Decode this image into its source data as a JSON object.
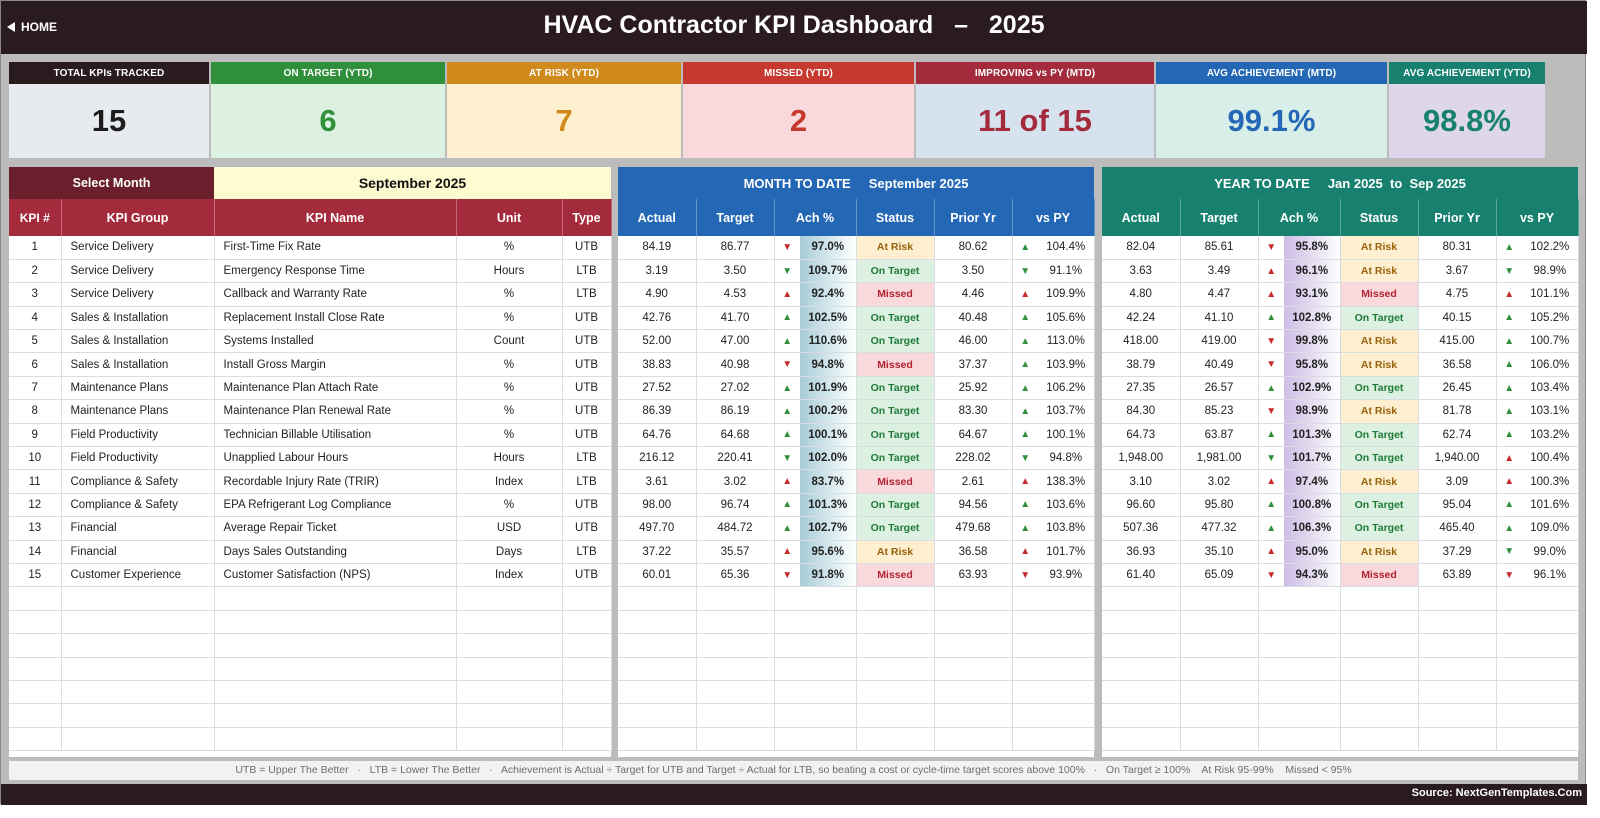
{
  "header": {
    "home_label": "HOME",
    "title": "HVAC Contractor KPI Dashboard   –   2025"
  },
  "cards": [
    {
      "label": "TOTAL KPIs TRACKED",
      "value": "15",
      "head_color": "#2a1b1f",
      "bg_color": "#e7eaef",
      "value_color": "#1d1d1d"
    },
    {
      "label": "ON TARGET (YTD)",
      "value": "6",
      "head_color": "#2f8f3a",
      "bg_color": "#dcf1e2",
      "value_color": "#2f8f3a"
    },
    {
      "label": "AT RISK (YTD)",
      "value": "7",
      "head_color": "#d08a1c",
      "bg_color": "#fdefcf",
      "value_color": "#d08a1c"
    },
    {
      "label": "MISSED (YTD)",
      "value": "2",
      "head_color": "#c7392f",
      "bg_color": "#f9d9db",
      "value_color": "#c7392f"
    },
    {
      "label": "IMPROVING vs PY (MTD)",
      "value": "11 of 15",
      "head_color": "#a42b3b",
      "bg_color": "#d6e2ee",
      "value_color": "#a42b3b"
    },
    {
      "label": "AVG ACHIEVEMENT (MTD)",
      "value": "99.1%",
      "head_color": "#2367b5",
      "bg_color": "#d8eee9",
      "value_color": "#2367b5"
    },
    {
      "label": "AVG ACHIEVEMENT (YTD)",
      "value": "98.8%",
      "head_color": "#17806e",
      "bg_color": "#ded7ec",
      "value_color": "#17806e"
    }
  ],
  "selector": {
    "label": "Select Month",
    "value": "September 2025"
  },
  "mtd_band": "MONTH TO DATE     September 2025",
  "ytd_band": "YEAR TO DATE     Jan 2025  to  Sep 2025",
  "left_headers": [
    "KPI #",
    "KPI Group",
    "KPI Name",
    "Unit",
    "Type"
  ],
  "period_headers": [
    "Actual",
    "Target",
    "Ach %",
    "Status",
    "Prior Yr",
    "vs PY"
  ],
  "kpis": [
    {
      "id": "1",
      "group": "Service Delivery",
      "name": "First-Time Fix Rate",
      "unit": "%",
      "type": "UTB",
      "mtd": {
        "actual": "84.19",
        "target": "86.77",
        "ach_dir": "down",
        "ach": "97.0%",
        "status": "At Risk",
        "prior": "80.62",
        "py_dir": "up",
        "vs_py": "104.4%"
      },
      "ytd": {
        "actual": "82.04",
        "target": "85.61",
        "ach_dir": "down",
        "ach": "95.8%",
        "status": "At Risk",
        "prior": "80.31",
        "py_dir": "up",
        "vs_py": "102.2%"
      }
    },
    {
      "id": "2",
      "group": "Service Delivery",
      "name": "Emergency Response Time",
      "unit": "Hours",
      "type": "LTB",
      "mtd": {
        "actual": "3.19",
        "target": "3.50",
        "ach_dir": "down-good",
        "ach": "109.7%",
        "status": "On Target",
        "prior": "3.50",
        "py_dir": "down-good",
        "vs_py": "91.1%"
      },
      "ytd": {
        "actual": "3.63",
        "target": "3.49",
        "ach_dir": "up-bad",
        "ach": "96.1%",
        "status": "At Risk",
        "prior": "3.67",
        "py_dir": "down-good",
        "vs_py": "98.9%"
      }
    },
    {
      "id": "3",
      "group": "Service Delivery",
      "name": "Callback and Warranty Rate",
      "unit": "%",
      "type": "LTB",
      "mtd": {
        "actual": "4.90",
        "target": "4.53",
        "ach_dir": "up-bad",
        "ach": "92.4%",
        "status": "Missed",
        "prior": "4.46",
        "py_dir": "up-bad",
        "vs_py": "109.9%"
      },
      "ytd": {
        "actual": "4.80",
        "target": "4.47",
        "ach_dir": "up-bad",
        "ach": "93.1%",
        "status": "Missed",
        "prior": "4.75",
        "py_dir": "up-bad",
        "vs_py": "101.1%"
      }
    },
    {
      "id": "4",
      "group": "Sales & Installation",
      "name": "Replacement Install Close Rate",
      "unit": "%",
      "type": "UTB",
      "mtd": {
        "actual": "42.76",
        "target": "41.70",
        "ach_dir": "up",
        "ach": "102.5%",
        "status": "On Target",
        "prior": "40.48",
        "py_dir": "up",
        "vs_py": "105.6%"
      },
      "ytd": {
        "actual": "42.24",
        "target": "41.10",
        "ach_dir": "up",
        "ach": "102.8%",
        "status": "On Target",
        "prior": "40.15",
        "py_dir": "up",
        "vs_py": "105.2%"
      }
    },
    {
      "id": "5",
      "group": "Sales & Installation",
      "name": "Systems Installed",
      "unit": "Count",
      "type": "UTB",
      "mtd": {
        "actual": "52.00",
        "target": "47.00",
        "ach_dir": "up",
        "ach": "110.6%",
        "status": "On Target",
        "prior": "46.00",
        "py_dir": "up",
        "vs_py": "113.0%"
      },
      "ytd": {
        "actual": "418.00",
        "target": "419.00",
        "ach_dir": "down",
        "ach": "99.8%",
        "status": "At Risk",
        "prior": "415.00",
        "py_dir": "up",
        "vs_py": "100.7%"
      }
    },
    {
      "id": "6",
      "group": "Sales & Installation",
      "name": "Install Gross Margin",
      "unit": "%",
      "type": "UTB",
      "mtd": {
        "actual": "38.83",
        "target": "40.98",
        "ach_dir": "down",
        "ach": "94.8%",
        "status": "Missed",
        "prior": "37.37",
        "py_dir": "up",
        "vs_py": "103.9%"
      },
      "ytd": {
        "actual": "38.79",
        "target": "40.49",
        "ach_dir": "down",
        "ach": "95.8%",
        "status": "At Risk",
        "prior": "36.58",
        "py_dir": "up",
        "vs_py": "106.0%"
      }
    },
    {
      "id": "7",
      "group": "Maintenance Plans",
      "name": "Maintenance Plan Attach Rate",
      "unit": "%",
      "type": "UTB",
      "mtd": {
        "actual": "27.52",
        "target": "27.02",
        "ach_dir": "up",
        "ach": "101.9%",
        "status": "On Target",
        "prior": "25.92",
        "py_dir": "up",
        "vs_py": "106.2%"
      },
      "ytd": {
        "actual": "27.35",
        "target": "26.57",
        "ach_dir": "up",
        "ach": "102.9%",
        "status": "On Target",
        "prior": "26.45",
        "py_dir": "up",
        "vs_py": "103.4%"
      }
    },
    {
      "id": "8",
      "group": "Maintenance Plans",
      "name": "Maintenance Plan Renewal Rate",
      "unit": "%",
      "type": "UTB",
      "mtd": {
        "actual": "86.39",
        "target": "86.19",
        "ach_dir": "up",
        "ach": "100.2%",
        "status": "On Target",
        "prior": "83.30",
        "py_dir": "up",
        "vs_py": "103.7%"
      },
      "ytd": {
        "actual": "84.30",
        "target": "85.23",
        "ach_dir": "down",
        "ach": "98.9%",
        "status": "At Risk",
        "prior": "81.78",
        "py_dir": "up",
        "vs_py": "103.1%"
      }
    },
    {
      "id": "9",
      "group": "Field Productivity",
      "name": "Technician Billable Utilisation",
      "unit": "%",
      "type": "UTB",
      "mtd": {
        "actual": "64.76",
        "target": "64.68",
        "ach_dir": "up",
        "ach": "100.1%",
        "status": "On Target",
        "prior": "64.67",
        "py_dir": "up",
        "vs_py": "100.1%"
      },
      "ytd": {
        "actual": "64.73",
        "target": "63.87",
        "ach_dir": "up",
        "ach": "101.3%",
        "status": "On Target",
        "prior": "62.74",
        "py_dir": "up",
        "vs_py": "103.2%"
      }
    },
    {
      "id": "10",
      "group": "Field Productivity",
      "name": "Unapplied Labour Hours",
      "unit": "Hours",
      "type": "LTB",
      "mtd": {
        "actual": "216.12",
        "target": "220.41",
        "ach_dir": "down-good",
        "ach": "102.0%",
        "status": "On Target",
        "prior": "228.02",
        "py_dir": "down-good",
        "vs_py": "94.8%"
      },
      "ytd": {
        "actual": "1,948.00",
        "target": "1,981.00",
        "ach_dir": "down-good",
        "ach": "101.7%",
        "status": "On Target",
        "prior": "1,940.00",
        "py_dir": "up-bad",
        "vs_py": "100.4%"
      }
    },
    {
      "id": "11",
      "group": "Compliance & Safety",
      "name": "Recordable Injury Rate (TRIR)",
      "unit": "Index",
      "type": "LTB",
      "mtd": {
        "actual": "3.61",
        "target": "3.02",
        "ach_dir": "up-bad",
        "ach": "83.7%",
        "status": "Missed",
        "prior": "2.61",
        "py_dir": "up-bad",
        "vs_py": "138.3%"
      },
      "ytd": {
        "actual": "3.10",
        "target": "3.02",
        "ach_dir": "up-bad",
        "ach": "97.4%",
        "status": "At Risk",
        "prior": "3.09",
        "py_dir": "up-bad",
        "vs_py": "100.3%"
      }
    },
    {
      "id": "12",
      "group": "Compliance & Safety",
      "name": "EPA Refrigerant Log Compliance",
      "unit": "%",
      "type": "UTB",
      "mtd": {
        "actual": "98.00",
        "target": "96.74",
        "ach_dir": "up",
        "ach": "101.3%",
        "status": "On Target",
        "prior": "94.56",
        "py_dir": "up",
        "vs_py": "103.6%"
      },
      "ytd": {
        "actual": "96.60",
        "target": "95.80",
        "ach_dir": "up",
        "ach": "100.8%",
        "status": "On Target",
        "prior": "95.04",
        "py_dir": "up",
        "vs_py": "101.6%"
      }
    },
    {
      "id": "13",
      "group": "Financial",
      "name": "Average Repair Ticket",
      "unit": "USD",
      "type": "UTB",
      "mtd": {
        "actual": "497.70",
        "target": "484.72",
        "ach_dir": "up",
        "ach": "102.7%",
        "status": "On Target",
        "prior": "479.68",
        "py_dir": "up",
        "vs_py": "103.8%"
      },
      "ytd": {
        "actual": "507.36",
        "target": "477.32",
        "ach_dir": "up",
        "ach": "106.3%",
        "status": "On Target",
        "prior": "465.40",
        "py_dir": "up",
        "vs_py": "109.0%"
      }
    },
    {
      "id": "14",
      "group": "Financial",
      "name": "Days Sales Outstanding",
      "unit": "Days",
      "type": "LTB",
      "mtd": {
        "actual": "37.22",
        "target": "35.57",
        "ach_dir": "up-bad",
        "ach": "95.6%",
        "status": "At Risk",
        "prior": "36.58",
        "py_dir": "up-bad",
        "vs_py": "101.7%"
      },
      "ytd": {
        "actual": "36.93",
        "target": "35.10",
        "ach_dir": "up-bad",
        "ach": "95.0%",
        "status": "At Risk",
        "prior": "37.29",
        "py_dir": "down-good",
        "vs_py": "99.0%"
      }
    },
    {
      "id": "15",
      "group": "Customer Experience",
      "name": "Customer Satisfaction (NPS)",
      "unit": "Index",
      "type": "UTB",
      "mtd": {
        "actual": "60.01",
        "target": "65.36",
        "ach_dir": "down",
        "ach": "91.8%",
        "status": "Missed",
        "prior": "63.93",
        "py_dir": "down",
        "vs_py": "93.9%"
      },
      "ytd": {
        "actual": "61.40",
        "target": "65.09",
        "ach_dir": "down",
        "ach": "94.3%",
        "status": "Missed",
        "prior": "63.89",
        "py_dir": "down",
        "vs_py": "96.1%"
      }
    }
  ],
  "footnote": "UTB = Upper The Better   ·   LTB = Lower The Better   ·   Achievement is Actual ÷ Target for UTB and Target ÷ Actual for LTB, so beating a cost or cycle-time target scores above 100%   ·   On Target ≥ 100%    At Risk 95-99%    Missed < 95%",
  "source": "Source: NextGenTemplates.Com"
}
